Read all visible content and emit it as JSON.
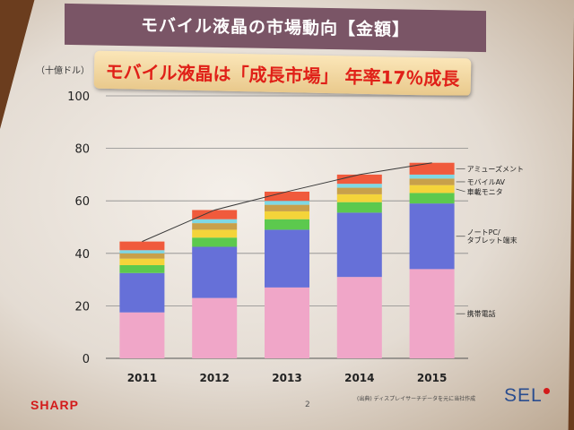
{
  "slide": {
    "title": "モバイル液晶の市場動向【金額】",
    "banner": "モバイル液晶は「成長市場」 年率17％成長",
    "unit_label": "（十億ドル）",
    "brand_logo": "SHARP",
    "page_number": "2",
    "source_note": "(出典) ディスプレイサーチデータを元に当社作成",
    "corner_logo": "SEL"
  },
  "chart_data": {
    "type": "bar",
    "stacked": true,
    "categories": [
      "2011",
      "2012",
      "2013",
      "2014",
      "2015"
    ],
    "ylim": [
      0,
      100
    ],
    "yticks": [
      0,
      20,
      40,
      60,
      80,
      100
    ],
    "grid": true,
    "series": [
      {
        "name": "携帯電話",
        "color": "#f0a6c8",
        "values": [
          17.5,
          23,
          27,
          31,
          34
        ]
      },
      {
        "name": "ノートPC/タブレット端末",
        "color": "#6670d8",
        "values": [
          15,
          19.5,
          22,
          24.5,
          25
        ]
      },
      {
        "name": "",
        "color": "#5cc94e",
        "values": [
          3,
          3.5,
          4,
          4,
          4
        ]
      },
      {
        "name": "車載モニタ",
        "color": "#f4d43a",
        "values": [
          2.5,
          3,
          3,
          3,
          3
        ]
      },
      {
        "name": "モバイルAV",
        "color": "#c8a04a",
        "values": [
          2,
          2.5,
          2.5,
          2.5,
          2.5
        ]
      },
      {
        "name": "",
        "color": "#7fd8e4",
        "values": [
          1.2,
          1.5,
          1.5,
          1.5,
          1.5
        ]
      },
      {
        "name": "アミューズメント",
        "color": "#f05a3c",
        "values": [
          3.3,
          3.5,
          3.5,
          3.5,
          4.5
        ]
      }
    ]
  }
}
